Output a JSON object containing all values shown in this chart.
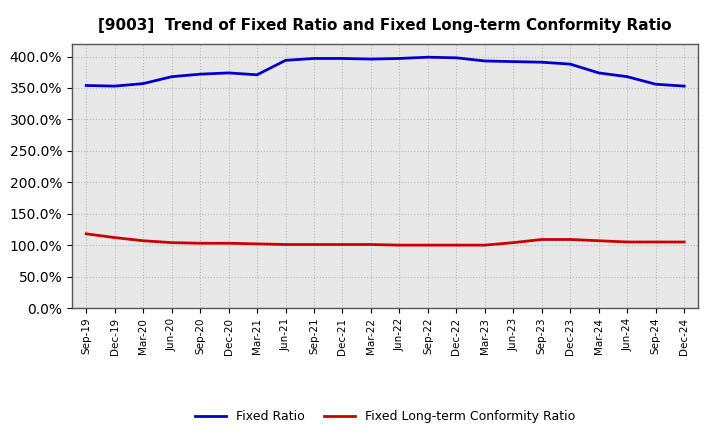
{
  "title": "[9003]  Trend of Fixed Ratio and Fixed Long-term Conformity Ratio",
  "x_labels": [
    "Sep-19",
    "Dec-19",
    "Mar-20",
    "Jun-20",
    "Sep-20",
    "Dec-20",
    "Mar-21",
    "Jun-21",
    "Sep-21",
    "Dec-21",
    "Mar-22",
    "Jun-22",
    "Sep-22",
    "Dec-22",
    "Mar-23",
    "Jun-23",
    "Sep-23",
    "Dec-23",
    "Mar-24",
    "Jun-24",
    "Sep-24",
    "Dec-24"
  ],
  "fixed_ratio": [
    354,
    353,
    357,
    368,
    372,
    374,
    371,
    394,
    397,
    397,
    396,
    397,
    399,
    398,
    393,
    392,
    391,
    388,
    374,
    368,
    356,
    353
  ],
  "fixed_lt_ratio": [
    118,
    112,
    107,
    104,
    103,
    103,
    102,
    101,
    101,
    101,
    101,
    100,
    100,
    100,
    100,
    104,
    109,
    109,
    107,
    105,
    105,
    105
  ],
  "fixed_ratio_color": "#0000cc",
  "fixed_lt_ratio_color": "#cc0000",
  "ylim": [
    0,
    420
  ],
  "yticks": [
    0,
    50,
    100,
    150,
    200,
    250,
    300,
    350,
    400
  ],
  "background_color": "#ffffff",
  "plot_bg_color": "#e8e8e8",
  "grid_color": "#bbbbbb",
  "legend_fixed_ratio": "Fixed Ratio",
  "legend_fixed_lt_ratio": "Fixed Long-term Conformity Ratio"
}
